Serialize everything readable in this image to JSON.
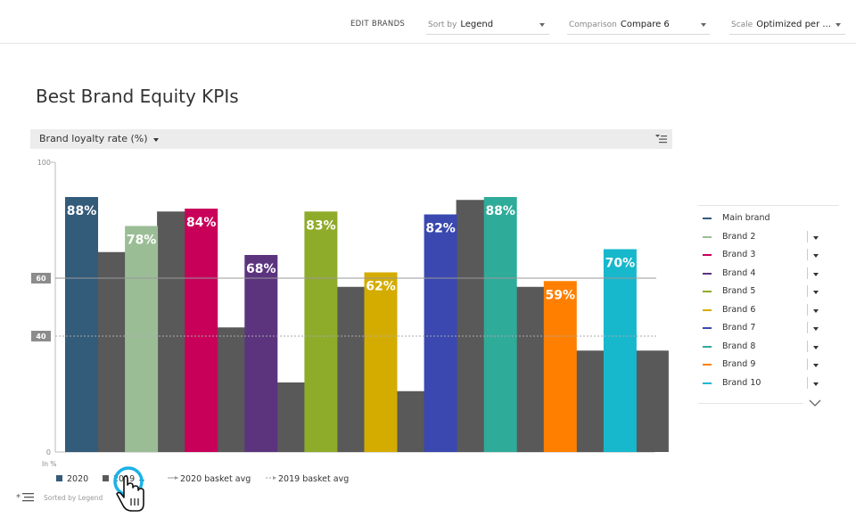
{
  "topbar": {
    "edit_brands": "EDIT BRANDS",
    "sort_label": "Sort by",
    "sort_value": "Legend",
    "comparison_label": "Comparison",
    "comparison_value": "Compare 6",
    "scale_label": "Scale",
    "scale_value": "Optimized per ..."
  },
  "page_title": "Best Brand Equity KPIs",
  "kpi_selector": {
    "label": "Brand loyalty rate (%)"
  },
  "legend": {
    "items": [
      {
        "name": "Main brand",
        "color": "#335b7a",
        "has_dropdown": false
      },
      {
        "name": "Brand 2",
        "color": "#9bbd96",
        "has_dropdown": true
      },
      {
        "name": "Brand 3",
        "color": "#c8005a",
        "has_dropdown": true
      },
      {
        "name": "Brand 4",
        "color": "#5c347e",
        "has_dropdown": true
      },
      {
        "name": "Brand 5",
        "color": "#8fab2a",
        "has_dropdown": true
      },
      {
        "name": "Brand 6",
        "color": "#d4ac00",
        "has_dropdown": true
      },
      {
        "name": "Brand 7",
        "color": "#3a48b0",
        "has_dropdown": true
      },
      {
        "name": "Brand 8",
        "color": "#2fab9a",
        "has_dropdown": true
      },
      {
        "name": "Brand 9",
        "color": "#ff8000",
        "has_dropdown": true
      },
      {
        "name": "Brand 10",
        "color": "#17b8cc",
        "has_dropdown": true
      }
    ]
  },
  "bottom_legend": {
    "y2020": "2020",
    "y2019": "2019",
    "basket2020": "2020 basket avg",
    "basket2019": "2019 basket avg",
    "sorted": "Sorted by Legend"
  },
  "chart_data": {
    "type": "bar",
    "ylim": [
      0,
      100
    ],
    "yticks": [
      0,
      100
    ],
    "unit_label": "In %",
    "series": [
      {
        "name": "2020",
        "values": [
          88,
          78,
          84,
          68,
          83,
          62,
          82,
          88,
          59,
          70
        ],
        "colors": [
          "#335b7a",
          "#9bbd96",
          "#c8005a",
          "#5c347e",
          "#8fab2a",
          "#d4ac00",
          "#3a48b0",
          "#2fab9a",
          "#ff8000",
          "#17b8cc"
        ]
      },
      {
        "name": "2019",
        "values": [
          69,
          83,
          43,
          24,
          57,
          21,
          87,
          57,
          35,
          35
        ],
        "color": "#595959"
      }
    ],
    "value_labels": [
      "88%",
      "78%",
      "84%",
      "68%",
      "83%",
      "62%",
      "82%",
      "88%",
      "59%",
      "70%"
    ],
    "reference_lines": [
      {
        "name": "2020 basket avg",
        "value": 60,
        "label": "60",
        "style": "solid"
      },
      {
        "name": "2019 basket avg",
        "value": 40,
        "label": "40",
        "style": "dotted"
      }
    ]
  }
}
